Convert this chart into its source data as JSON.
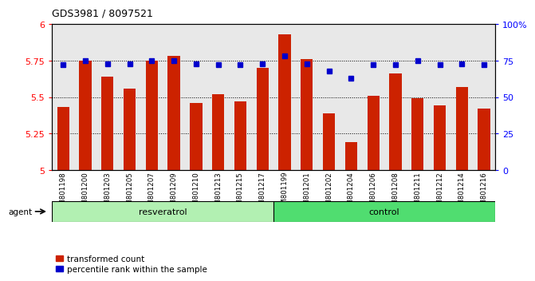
{
  "title": "GDS3981 / 8097521",
  "samples": [
    "GSM801198",
    "GSM801200",
    "GSM801203",
    "GSM801205",
    "GSM801207",
    "GSM801209",
    "GSM801210",
    "GSM801213",
    "GSM801215",
    "GSM801217",
    "GSM801199",
    "GSM801201",
    "GSM801202",
    "GSM801204",
    "GSM801206",
    "GSM801208",
    "GSM801211",
    "GSM801212",
    "GSM801214",
    "GSM801216"
  ],
  "bar_values": [
    5.43,
    5.75,
    5.64,
    5.56,
    5.75,
    5.78,
    5.46,
    5.52,
    5.47,
    5.7,
    5.93,
    5.76,
    5.39,
    5.19,
    5.51,
    5.66,
    5.49,
    5.44,
    5.57,
    5.42
  ],
  "dot_values": [
    72,
    75,
    73,
    73,
    75,
    75,
    73,
    72,
    72,
    73,
    78,
    73,
    68,
    63,
    72,
    72,
    75,
    72,
    73,
    72
  ],
  "group_labels": [
    "resveratrol",
    "control"
  ],
  "group_sizes": [
    10,
    10
  ],
  "group_colors_resveratrol": "#b2f0b2",
  "group_colors_control": "#50dd70",
  "bar_color": "#CC2200",
  "dot_color": "#0000CC",
  "ylim": [
    5.0,
    6.0
  ],
  "y2lim": [
    0,
    100
  ],
  "yticks": [
    5.0,
    5.25,
    5.5,
    5.75,
    6.0
  ],
  "ytick_labels": [
    "5",
    "5.25",
    "5.5",
    "5.75",
    "6"
  ],
  "y2ticks": [
    0,
    25,
    50,
    75,
    100
  ],
  "y2tick_labels": [
    "0",
    "25",
    "50",
    "75",
    "100%"
  ],
  "legend_bar": "transformed count",
  "legend_dot": "percentile rank within the sample",
  "agent_label": "agent",
  "bg_color": "#e8e8e8"
}
